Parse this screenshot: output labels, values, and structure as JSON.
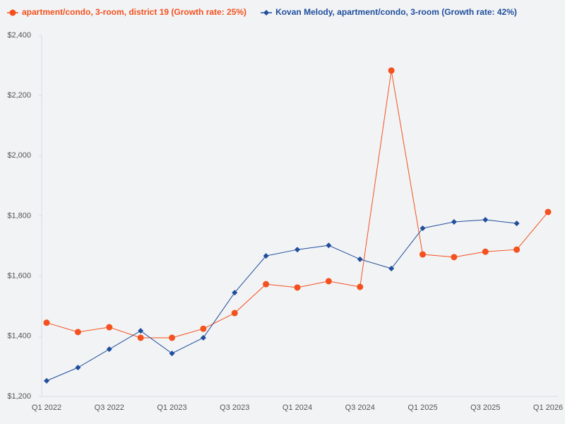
{
  "chart_data": {
    "type": "line",
    "categories": [
      "Q1 2022",
      null,
      "Q3 2022",
      null,
      "Q1 2023",
      null,
      "Q3 2023",
      null,
      "Q1 2024",
      null,
      "Q3 2024",
      null,
      "Q1 2025",
      null,
      "Q3 2025",
      null,
      "Q1 2026"
    ],
    "series": [
      {
        "name": "apartment/condo, 3-room, district 19 (Growth rate: 25%)",
        "color": "#f4511e",
        "marker": "circle",
        "values": [
          1445,
          1414,
          1430,
          1395,
          1395,
          1425,
          1477,
          1573,
          1562,
          1583,
          1564,
          2283,
          1672,
          1663,
          1681,
          1688,
          1813
        ]
      },
      {
        "name": "Kovan Melody, apartment/condo, 3-room (Growth rate: 42%)",
        "color": "#1f4e9c",
        "marker": "diamond",
        "values": [
          1252,
          1296,
          1357,
          1418,
          1343,
          1395,
          1545,
          1667,
          1688,
          1702,
          1656,
          1625,
          1759,
          1780,
          1787,
          1775,
          null
        ]
      }
    ],
    "ylim": [
      1200,
      2400
    ],
    "yticks": [
      {
        "value": 1200,
        "label": "$1,200"
      },
      {
        "value": 1400,
        "label": "$1,400"
      },
      {
        "value": 1600,
        "label": "$1,600"
      },
      {
        "value": 1800,
        "label": "$1,800"
      },
      {
        "value": 2000,
        "label": "$2,000"
      },
      {
        "value": 2200,
        "label": "$2,200"
      },
      {
        "value": 2400,
        "label": "$2,400"
      }
    ],
    "grid": false,
    "legend": "top"
  }
}
